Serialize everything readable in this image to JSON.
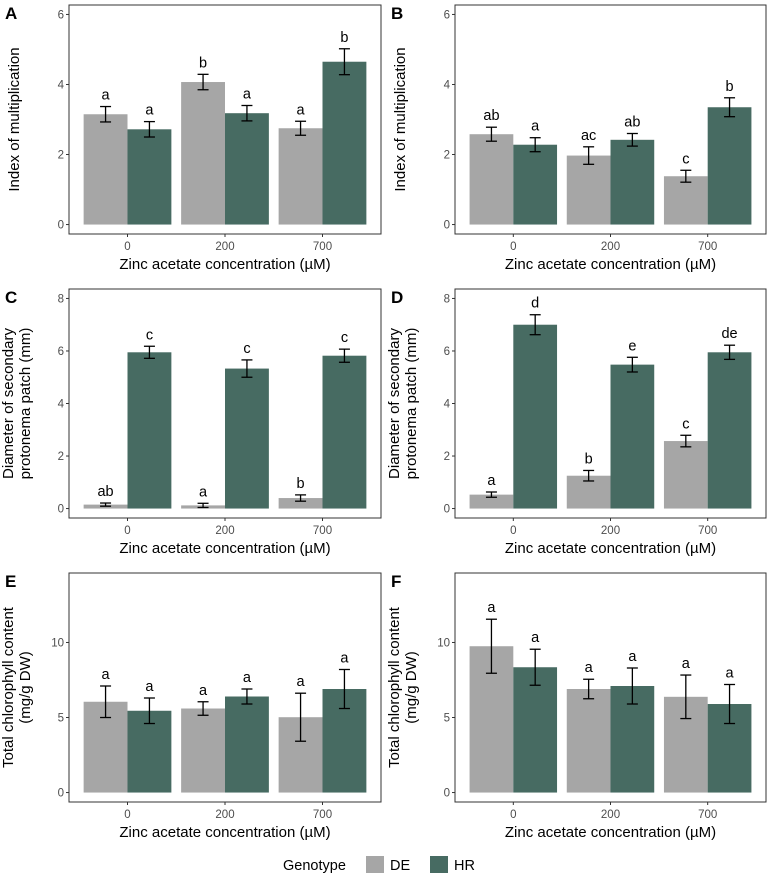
{
  "legend": {
    "title": "Genotype",
    "entries": [
      {
        "name": "DE",
        "color": "#a6a6a6"
      },
      {
        "name": "HR",
        "color": "#476b62"
      }
    ]
  },
  "chart_data": [
    {
      "panel": "A",
      "type": "bar",
      "categories": [
        "0",
        "200",
        "700"
      ],
      "xlabel": "Zinc acetate concentration (µM)",
      "ylabel": [
        "Index of multiplication"
      ],
      "ylim": [
        0,
        6
      ],
      "yticks": [
        0,
        2,
        4,
        6
      ],
      "series": [
        {
          "name": "DE",
          "values": [
            3.15,
            4.07,
            2.75
          ],
          "errors": [
            0.22,
            0.22,
            0.2
          ],
          "letters": [
            "a",
            "b",
            "a"
          ]
        },
        {
          "name": "HR",
          "values": [
            2.72,
            3.18,
            4.65
          ],
          "errors": [
            0.22,
            0.22,
            0.37
          ],
          "letters": [
            "a",
            "a",
            "b"
          ]
        }
      ]
    },
    {
      "panel": "B",
      "type": "bar",
      "categories": [
        "0",
        "200",
        "700"
      ],
      "xlabel": "Zinc acetate concentration (µM)",
      "ylabel": [
        "Index of multiplication"
      ],
      "ylim": [
        0,
        6
      ],
      "yticks": [
        0,
        2,
        4,
        6
      ],
      "series": [
        {
          "name": "DE",
          "values": [
            2.58,
            1.97,
            1.38
          ],
          "errors": [
            0.2,
            0.25,
            0.17
          ],
          "letters": [
            "ab",
            "ac",
            "c"
          ]
        },
        {
          "name": "HR",
          "values": [
            2.28,
            2.42,
            3.35
          ],
          "errors": [
            0.2,
            0.18,
            0.27
          ],
          "letters": [
            "a",
            "ab",
            "b"
          ]
        }
      ]
    },
    {
      "panel": "C",
      "type": "bar",
      "categories": [
        "0",
        "200",
        "700"
      ],
      "xlabel": "Zinc acetate concentration (µM)",
      "ylabel": [
        "Diameter of secondary",
        "protonema patch (mm)"
      ],
      "ylim": [
        0,
        8
      ],
      "yticks": [
        0,
        2,
        4,
        6,
        8
      ],
      "series": [
        {
          "name": "DE",
          "values": [
            0.15,
            0.12,
            0.4
          ],
          "errors": [
            0.06,
            0.08,
            0.12
          ],
          "letters": [
            "ab",
            "a",
            "b"
          ]
        },
        {
          "name": "HR",
          "values": [
            5.95,
            5.33,
            5.82
          ],
          "errors": [
            0.23,
            0.33,
            0.25
          ],
          "letters": [
            "c",
            "c",
            "c"
          ]
        }
      ]
    },
    {
      "panel": "D",
      "type": "bar",
      "categories": [
        "0",
        "200",
        "700"
      ],
      "xlabel": "Zinc acetate concentration (µM)",
      "ylabel": [
        "Diameter of secondary",
        "protonema patch (mm)"
      ],
      "ylim": [
        0,
        8
      ],
      "yticks": [
        0,
        2,
        4,
        6,
        8
      ],
      "series": [
        {
          "name": "DE",
          "values": [
            0.53,
            1.25,
            2.57
          ],
          "errors": [
            0.1,
            0.2,
            0.22
          ],
          "letters": [
            "a",
            "b",
            "c"
          ]
        },
        {
          "name": "HR",
          "values": [
            7.0,
            5.48,
            5.95
          ],
          "errors": [
            0.38,
            0.28,
            0.27
          ],
          "letters": [
            "d",
            "e",
            "de"
          ]
        }
      ]
    },
    {
      "panel": "E",
      "type": "bar",
      "categories": [
        "0",
        "200",
        "700"
      ],
      "xlabel": "Zinc acetate concentration (µM)",
      "ylabel": [
        "Total chlorophyll content",
        "(mg/g DW)"
      ],
      "ylim": [
        0,
        14
      ],
      "yticks": [
        0,
        5,
        10
      ],
      "series": [
        {
          "name": "DE",
          "values": [
            6.05,
            5.6,
            5.02
          ],
          "errors": [
            1.05,
            0.45,
            1.6
          ],
          "letters": [
            "a",
            "a",
            "a"
          ]
        },
        {
          "name": "HR",
          "values": [
            5.45,
            6.4,
            6.9
          ],
          "errors": [
            0.85,
            0.5,
            1.3
          ],
          "letters": [
            "a",
            "a",
            "a"
          ]
        }
      ]
    },
    {
      "panel": "F",
      "type": "bar",
      "categories": [
        "0",
        "200",
        "700"
      ],
      "xlabel": "Zinc acetate concentration (µM)",
      "ylabel": [
        "Total chlorophyll content",
        "(mg/g DW)"
      ],
      "ylim": [
        0,
        14
      ],
      "yticks": [
        0,
        5,
        10
      ],
      "series": [
        {
          "name": "DE",
          "values": [
            9.75,
            6.9,
            6.38
          ],
          "errors": [
            1.8,
            0.65,
            1.45
          ],
          "letters": [
            "a",
            "a",
            "a"
          ]
        },
        {
          "name": "HR",
          "values": [
            8.35,
            7.1,
            5.9
          ],
          "errors": [
            1.2,
            1.2,
            1.3
          ],
          "letters": [
            "a",
            "a",
            "a"
          ]
        }
      ]
    }
  ]
}
